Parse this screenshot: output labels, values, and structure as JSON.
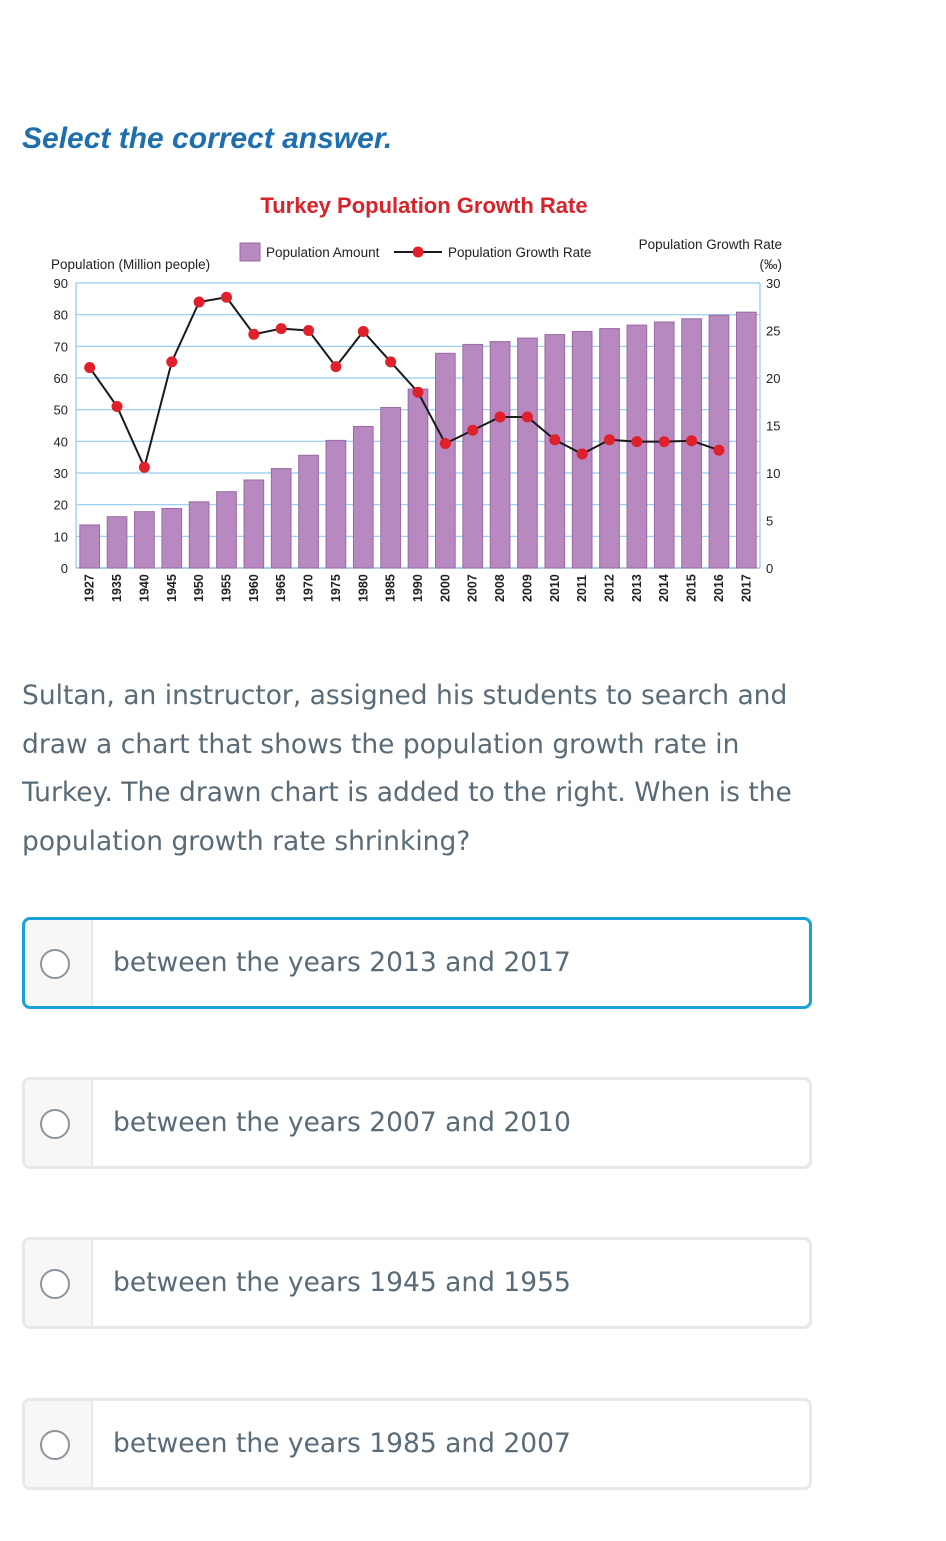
{
  "instruction": "Select the correct answer.",
  "question": "Sultan, an instructor, assigned his students to search and draw a chart that shows the population growth rate in Turkey. The drawn chart is added to the right. When is the population growth rate shrinking?",
  "options": [
    {
      "label": "between the years 2013 and 2017",
      "selected": true
    },
    {
      "label": "between the years 2007 and 2010",
      "selected": false
    },
    {
      "label": "between the years 1945 and 1955",
      "selected": false
    },
    {
      "label": "between the years 1985 and 2007",
      "selected": false
    }
  ],
  "colors": {
    "accent": "#1aa1d6",
    "bar": "#b888c0",
    "line_marker": "#e0202a",
    "title": "#d8232a"
  },
  "chart_data": {
    "type": "bar+line",
    "title": "Turkey Population Growth Rate",
    "legend": {
      "bar": "Population Amount",
      "line": "Population Growth Rate"
    },
    "y_left_label": "Population (Million people)",
    "y_right_label": "Population Growth Rate",
    "y_right_unit": "(‰)",
    "y_left_ticks": [
      0,
      10,
      20,
      30,
      40,
      50,
      60,
      70,
      80,
      90
    ],
    "y_right_ticks": [
      0,
      5,
      10,
      15,
      20,
      25,
      30
    ],
    "ylim_left": [
      0,
      90
    ],
    "ylim_right": [
      0,
      30
    ],
    "categories": [
      "1927",
      "1935",
      "1940",
      "1945",
      "1950",
      "1955",
      "1960",
      "1965",
      "1970",
      "1975",
      "1980",
      "1985",
      "1990",
      "2000",
      "2007",
      "2008",
      "2009",
      "2010",
      "2011",
      "2012",
      "2013",
      "2014",
      "2015",
      "2016",
      "2017"
    ],
    "series": [
      {
        "name": "Population Amount",
        "axis": "left",
        "values": [
          13.6,
          16.2,
          17.8,
          18.8,
          20.9,
          24.1,
          27.8,
          31.4,
          35.6,
          40.3,
          44.7,
          50.7,
          56.5,
          67.8,
          70.6,
          71.5,
          72.6,
          73.7,
          74.7,
          75.6,
          76.7,
          77.7,
          78.7,
          79.8,
          80.8
        ]
      },
      {
        "name": "Population Growth Rate",
        "axis": "right",
        "values": [
          21.1,
          17.0,
          10.6,
          21.7,
          28.0,
          28.5,
          24.6,
          25.2,
          25.0,
          21.2,
          24.9,
          21.7,
          18.5,
          13.1,
          14.5,
          15.9,
          15.9,
          13.5,
          12.0,
          13.5,
          13.3,
          13.3,
          13.4,
          12.4,
          null
        ]
      }
    ]
  }
}
